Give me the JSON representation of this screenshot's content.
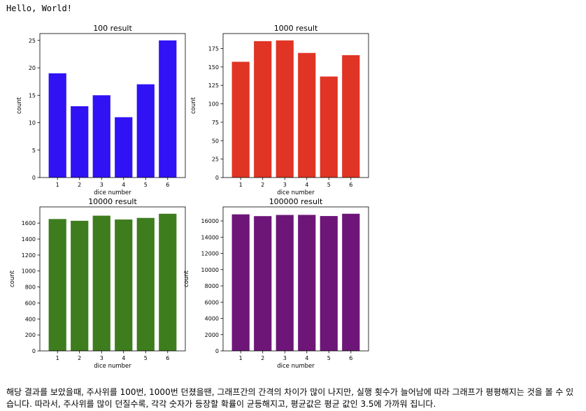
{
  "output": {
    "hello_text": "Hello, World!"
  },
  "chart_data": [
    {
      "type": "bar",
      "title": "100 result",
      "xlabel": "dice number",
      "ylabel": "count",
      "categories": [
        "1",
        "2",
        "3",
        "4",
        "5",
        "6"
      ],
      "values": [
        19,
        13,
        15,
        11,
        17,
        25
      ],
      "ylim": [
        0,
        26.25
      ],
      "yticks": [
        0,
        5,
        10,
        15,
        20,
        25
      ],
      "color": "#3012f5"
    },
    {
      "type": "bar",
      "title": "1000 result",
      "xlabel": "dice number",
      "ylabel": "count",
      "categories": [
        "1",
        "2",
        "3",
        "4",
        "5",
        "6"
      ],
      "values": [
        157,
        185,
        186,
        169,
        137,
        166
      ],
      "ylim": [
        0,
        195.3
      ],
      "yticks": [
        0,
        25,
        50,
        75,
        100,
        125,
        150,
        175
      ],
      "color": "#e03424"
    },
    {
      "type": "bar",
      "title": "10000 result",
      "xlabel": "dice number",
      "ylabel": "count",
      "categories": [
        "1",
        "2",
        "3",
        "4",
        "5",
        "6"
      ],
      "values": [
        1651,
        1629,
        1693,
        1645,
        1665,
        1717
      ],
      "ylim": [
        0,
        1802.85
      ],
      "yticks": [
        0,
        200,
        400,
        600,
        800,
        1000,
        1200,
        1400,
        1600
      ],
      "color": "#3e7d1e"
    },
    {
      "type": "bar",
      "title": "100000 result",
      "xlabel": "dice number",
      "ylabel": "count",
      "categories": [
        "1",
        "2",
        "3",
        "4",
        "5",
        "6"
      ],
      "values": [
        16809,
        16588,
        16733,
        16742,
        16599,
        16880
      ],
      "ylim": [
        0,
        17724
      ],
      "yticks": [
        0,
        2000,
        4000,
        6000,
        8000,
        10000,
        12000,
        14000,
        16000
      ],
      "color": "#6d1678"
    }
  ],
  "description": {
    "text": "해당 결과를 보았을때, 주사위를 100번, 1000번 던졌을땐, 그래프간의 간격의 차이가 많이 나지만, 실행 횟수가 늘어남에 따라 그래프가 평평해지는 것을 볼 수 있습니다. 따라서, 주사위를 많이 던질수록, 각각 숫자가 등장할 확률이 균등해지고, 평균값은 평균 값인 3.5에 가까워 집니다."
  }
}
